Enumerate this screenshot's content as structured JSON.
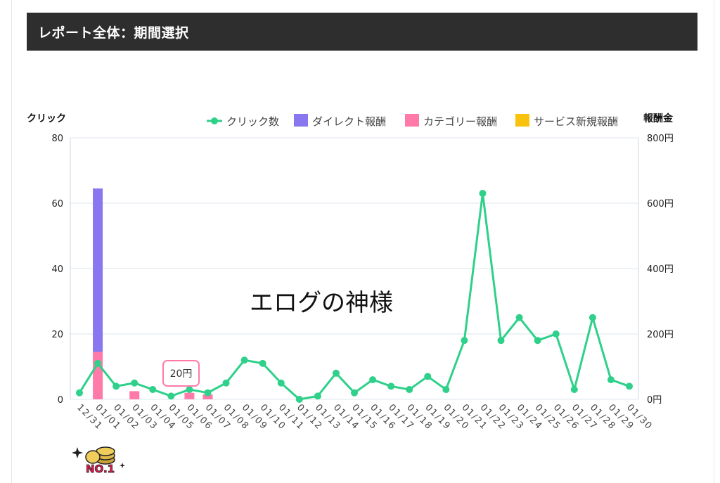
{
  "header": {
    "title": "レポート全体：期間選択"
  },
  "watermark": "エログの神様",
  "badge_text": "NO.1",
  "tooltip": {
    "label": "20円",
    "category": "01/06"
  },
  "colors": {
    "clicks": "#2ed08a",
    "direct": "#8877ee",
    "category": "#ff7aa8",
    "service": "#f8c20d"
  },
  "chart_data": {
    "type": "bar",
    "left_axis_title": "クリック",
    "right_axis_title": "報酬金",
    "left_ticks": [
      "80",
      "60",
      "40",
      "20",
      "0"
    ],
    "right_ticks": [
      "800円",
      "600円",
      "400円",
      "200円",
      "0円"
    ],
    "ylim_left": [
      0,
      80
    ],
    "ylim_right": [
      0,
      800
    ],
    "grid": true,
    "legend_position": "top-right",
    "categories": [
      "12/31",
      "01/01",
      "01/02",
      "01/03",
      "01/04",
      "01/05",
      "01/06",
      "01/07",
      "01/08",
      "01/09",
      "01/10",
      "01/11",
      "01/12",
      "01/13",
      "01/14",
      "01/15",
      "01/16",
      "01/17",
      "01/18",
      "01/19",
      "01/20",
      "01/21",
      "01/22",
      "01/23",
      "01/24",
      "01/25",
      "01/26",
      "01/27",
      "01/28",
      "01/29",
      "01/30"
    ],
    "series": [
      {
        "name": "クリック数",
        "type": "line",
        "axis": "left",
        "values": [
          2,
          11,
          4,
          5,
          3,
          1,
          3,
          2,
          5,
          12,
          11,
          5,
          0,
          1,
          8,
          2,
          6,
          4,
          3,
          7,
          3,
          18,
          63,
          18,
          25,
          18,
          20,
          3,
          25,
          6,
          4
        ]
      },
      {
        "name": "ダイレクト報酬",
        "type": "bar",
        "axis": "right",
        "values": [
          0,
          500,
          0,
          0,
          0,
          0,
          0,
          0,
          0,
          0,
          0,
          0,
          0,
          0,
          0,
          0,
          0,
          0,
          0,
          0,
          0,
          0,
          0,
          0,
          0,
          0,
          0,
          0,
          0,
          0,
          0
        ]
      },
      {
        "name": "カテゴリー報酬",
        "type": "bar",
        "axis": "right",
        "values": [
          0,
          145,
          0,
          25,
          0,
          0,
          20,
          15,
          0,
          0,
          0,
          0,
          0,
          0,
          0,
          0,
          0,
          0,
          0,
          0,
          0,
          0,
          0,
          0,
          0,
          0,
          0,
          0,
          0,
          0,
          0
        ]
      },
      {
        "name": "サービス新規報酬",
        "type": "bar",
        "axis": "right",
        "values": [
          0,
          0,
          0,
          0,
          0,
          0,
          0,
          0,
          0,
          0,
          0,
          0,
          0,
          0,
          0,
          0,
          0,
          0,
          0,
          0,
          0,
          0,
          0,
          0,
          0,
          0,
          0,
          0,
          0,
          0,
          0
        ]
      }
    ]
  }
}
